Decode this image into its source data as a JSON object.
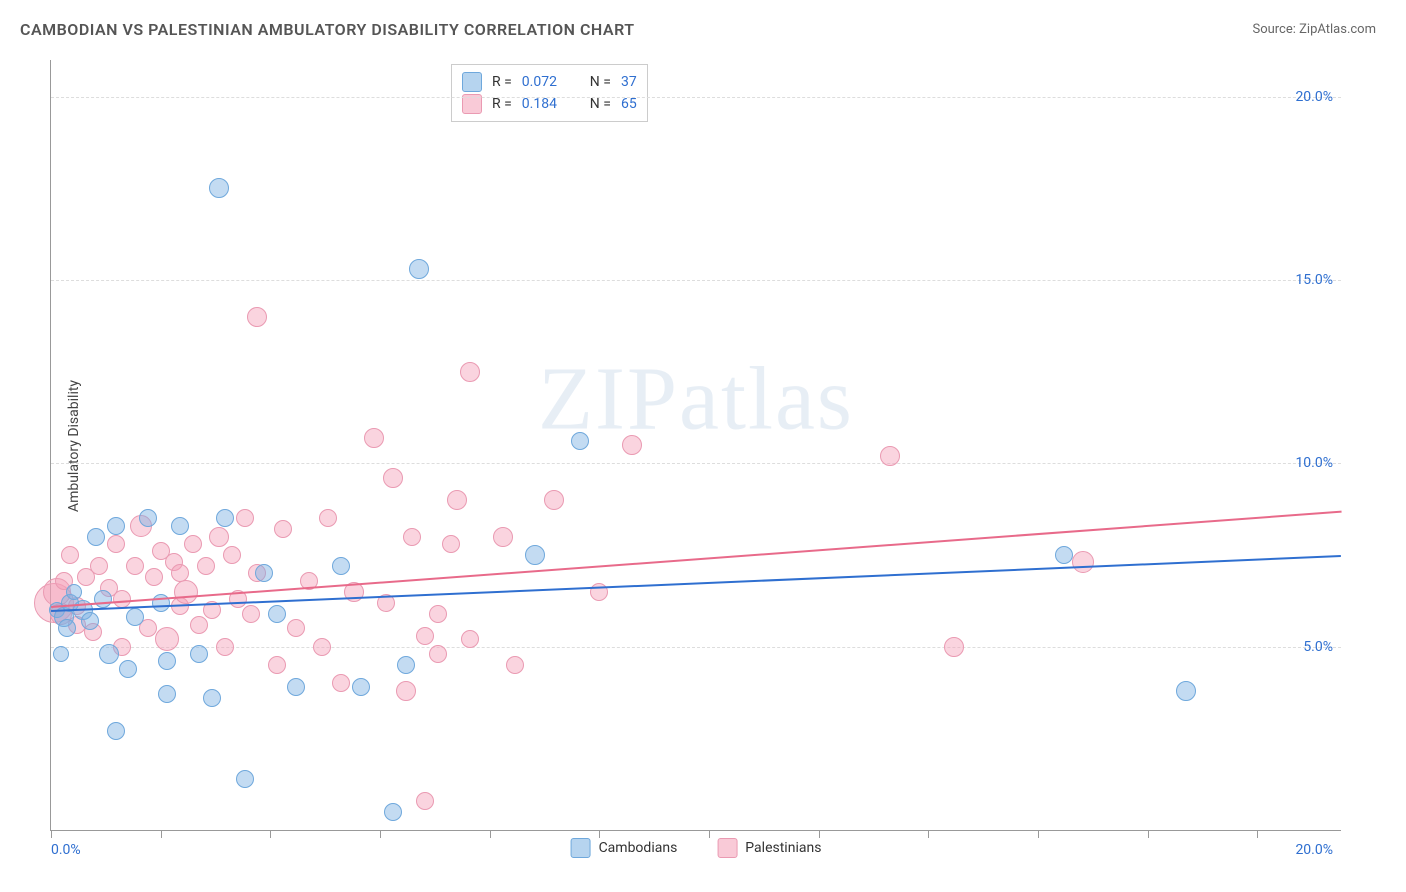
{
  "title": "CAMBODIAN VS PALESTINIAN AMBULATORY DISABILITY CORRELATION CHART",
  "source_label": "Source: ",
  "source_name": "ZipAtlas.com",
  "ylabel": "Ambulatory Disability",
  "watermark": {
    "part1": "ZIP",
    "part2": "atlas"
  },
  "chart": {
    "type": "scatter",
    "xlim": [
      0,
      20
    ],
    "ylim": [
      0,
      21
    ],
    "x_tick_positions": [
      0,
      1.7,
      3.4,
      5.1,
      6.8,
      8.5,
      10.2,
      11.9,
      13.6,
      15.3,
      17.0,
      18.7
    ],
    "y_ticks": [
      5.0,
      10.0,
      15.0,
      20.0
    ],
    "y_tick_labels": [
      "5.0%",
      "10.0%",
      "15.0%",
      "20.0%"
    ],
    "x_min_label": "0.0%",
    "x_max_label": "20.0%",
    "background_color": "#ffffff",
    "grid_color": "#dddddd",
    "axis_color": "#999999",
    "series": {
      "a": {
        "name": "Cambodians",
        "fill_color": "rgba(122,176,226,0.45)",
        "stroke_color": "#6fa8dc",
        "stat_R": "0.072",
        "stat_N": "37",
        "trend": {
          "y_at_x0": 6.0,
          "y_at_x20": 7.5,
          "color": "#2f6fd0"
        },
        "points": [
          {
            "x": 0.1,
            "y": 6.0,
            "r": 8
          },
          {
            "x": 0.2,
            "y": 5.8,
            "r": 10
          },
          {
            "x": 0.3,
            "y": 6.2,
            "r": 9
          },
          {
            "x": 0.15,
            "y": 4.8,
            "r": 8
          },
          {
            "x": 0.25,
            "y": 5.5,
            "r": 9
          },
          {
            "x": 0.35,
            "y": 6.5,
            "r": 8
          },
          {
            "x": 0.5,
            "y": 6.0,
            "r": 10
          },
          {
            "x": 0.6,
            "y": 5.7,
            "r": 9
          },
          {
            "x": 0.7,
            "y": 8.0,
            "r": 9
          },
          {
            "x": 0.8,
            "y": 6.3,
            "r": 9
          },
          {
            "x": 0.9,
            "y": 4.8,
            "r": 10
          },
          {
            "x": 1.0,
            "y": 8.3,
            "r": 9
          },
          {
            "x": 1.0,
            "y": 2.7,
            "r": 9
          },
          {
            "x": 1.2,
            "y": 4.4,
            "r": 9
          },
          {
            "x": 1.3,
            "y": 5.8,
            "r": 9
          },
          {
            "x": 1.5,
            "y": 8.5,
            "r": 9
          },
          {
            "x": 1.7,
            "y": 6.2,
            "r": 9
          },
          {
            "x": 1.8,
            "y": 3.7,
            "r": 9
          },
          {
            "x": 1.8,
            "y": 4.6,
            "r": 9
          },
          {
            "x": 2.0,
            "y": 8.3,
            "r": 9
          },
          {
            "x": 2.3,
            "y": 4.8,
            "r": 9
          },
          {
            "x": 2.6,
            "y": 17.5,
            "r": 10
          },
          {
            "x": 2.7,
            "y": 8.5,
            "r": 9
          },
          {
            "x": 2.5,
            "y": 3.6,
            "r": 9
          },
          {
            "x": 3.0,
            "y": 1.4,
            "r": 9
          },
          {
            "x": 3.3,
            "y": 7.0,
            "r": 9
          },
          {
            "x": 3.5,
            "y": 5.9,
            "r": 9
          },
          {
            "x": 3.8,
            "y": 3.9,
            "r": 9
          },
          {
            "x": 4.8,
            "y": 3.9,
            "r": 9
          },
          {
            "x": 4.5,
            "y": 7.2,
            "r": 9
          },
          {
            "x": 5.3,
            "y": 0.5,
            "r": 9
          },
          {
            "x": 5.7,
            "y": 15.3,
            "r": 10
          },
          {
            "x": 5.5,
            "y": 4.5,
            "r": 9
          },
          {
            "x": 7.5,
            "y": 7.5,
            "r": 10
          },
          {
            "x": 8.2,
            "y": 10.6,
            "r": 9
          },
          {
            "x": 15.7,
            "y": 7.5,
            "r": 9
          },
          {
            "x": 17.6,
            "y": 3.8,
            "r": 10
          }
        ]
      },
      "b": {
        "name": "Palestinians",
        "fill_color": "rgba(244,159,183,0.45)",
        "stroke_color": "#ea9ab2",
        "stat_R": "0.184",
        "stat_N": "65",
        "trend": {
          "y_at_x0": 6.1,
          "y_at_x20": 8.7,
          "color": "#e86a8a"
        },
        "points": [
          {
            "x": 0.05,
            "y": 6.2,
            "r": 20
          },
          {
            "x": 0.1,
            "y": 6.5,
            "r": 14
          },
          {
            "x": 0.15,
            "y": 5.9,
            "r": 11
          },
          {
            "x": 0.2,
            "y": 6.8,
            "r": 9
          },
          {
            "x": 0.3,
            "y": 7.5,
            "r": 9
          },
          {
            "x": 0.4,
            "y": 5.6,
            "r": 9
          },
          {
            "x": 0.55,
            "y": 6.9,
            "r": 9
          },
          {
            "x": 0.65,
            "y": 5.4,
            "r": 9
          },
          {
            "x": 0.75,
            "y": 7.2,
            "r": 9
          },
          {
            "x": 0.9,
            "y": 6.6,
            "r": 9
          },
          {
            "x": 1.0,
            "y": 7.8,
            "r": 9
          },
          {
            "x": 1.1,
            "y": 5.0,
            "r": 9
          },
          {
            "x": 1.1,
            "y": 6.3,
            "r": 9
          },
          {
            "x": 1.3,
            "y": 7.2,
            "r": 9
          },
          {
            "x": 1.4,
            "y": 8.3,
            "r": 11
          },
          {
            "x": 1.5,
            "y": 5.5,
            "r": 9
          },
          {
            "x": 1.6,
            "y": 6.9,
            "r": 9
          },
          {
            "x": 1.7,
            "y": 7.6,
            "r": 9
          },
          {
            "x": 1.8,
            "y": 5.2,
            "r": 12
          },
          {
            "x": 1.9,
            "y": 7.3,
            "r": 9
          },
          {
            "x": 2.0,
            "y": 6.1,
            "r": 9
          },
          {
            "x": 2.0,
            "y": 7.0,
            "r": 9
          },
          {
            "x": 2.1,
            "y": 6.5,
            "r": 12
          },
          {
            "x": 2.2,
            "y": 7.8,
            "r": 9
          },
          {
            "x": 2.3,
            "y": 5.6,
            "r": 9
          },
          {
            "x": 2.4,
            "y": 7.2,
            "r": 9
          },
          {
            "x": 2.5,
            "y": 6.0,
            "r": 9
          },
          {
            "x": 2.6,
            "y": 8.0,
            "r": 10
          },
          {
            "x": 2.7,
            "y": 5.0,
            "r": 9
          },
          {
            "x": 2.8,
            "y": 7.5,
            "r": 9
          },
          {
            "x": 2.9,
            "y": 6.3,
            "r": 9
          },
          {
            "x": 3.0,
            "y": 8.5,
            "r": 9
          },
          {
            "x": 3.1,
            "y": 5.9,
            "r": 9
          },
          {
            "x": 3.2,
            "y": 7.0,
            "r": 9
          },
          {
            "x": 3.2,
            "y": 14.0,
            "r": 10
          },
          {
            "x": 3.5,
            "y": 4.5,
            "r": 9
          },
          {
            "x": 3.6,
            "y": 8.2,
            "r": 9
          },
          {
            "x": 3.8,
            "y": 5.5,
            "r": 9
          },
          {
            "x": 4.0,
            "y": 6.8,
            "r": 9
          },
          {
            "x": 4.2,
            "y": 5.0,
            "r": 9
          },
          {
            "x": 4.3,
            "y": 8.5,
            "r": 9
          },
          {
            "x": 4.5,
            "y": 4.0,
            "r": 9
          },
          {
            "x": 4.7,
            "y": 6.5,
            "r": 10
          },
          {
            "x": 5.0,
            "y": 10.7,
            "r": 10
          },
          {
            "x": 5.2,
            "y": 6.2,
            "r": 9
          },
          {
            "x": 5.3,
            "y": 9.6,
            "r": 10
          },
          {
            "x": 5.5,
            "y": 3.8,
            "r": 10
          },
          {
            "x": 5.6,
            "y": 8.0,
            "r": 9
          },
          {
            "x": 5.8,
            "y": 5.3,
            "r": 9
          },
          {
            "x": 5.8,
            "y": 0.8,
            "r": 9
          },
          {
            "x": 6.0,
            "y": 4.8,
            "r": 9
          },
          {
            "x": 6.0,
            "y": 5.9,
            "r": 9
          },
          {
            "x": 6.2,
            "y": 7.8,
            "r": 9
          },
          {
            "x": 6.3,
            "y": 9.0,
            "r": 10
          },
          {
            "x": 6.5,
            "y": 5.2,
            "r": 9
          },
          {
            "x": 6.5,
            "y": 12.5,
            "r": 10
          },
          {
            "x": 7.0,
            "y": 8.0,
            "r": 10
          },
          {
            "x": 7.2,
            "y": 4.5,
            "r": 9
          },
          {
            "x": 7.8,
            "y": 9.0,
            "r": 10
          },
          {
            "x": 8.5,
            "y": 6.5,
            "r": 9
          },
          {
            "x": 9.0,
            "y": 10.5,
            "r": 10
          },
          {
            "x": 13.0,
            "y": 10.2,
            "r": 10
          },
          {
            "x": 14.0,
            "y": 5.0,
            "r": 10
          },
          {
            "x": 16.0,
            "y": 7.3,
            "r": 11
          },
          {
            "x": 0.4,
            "y": 6.1,
            "r": 9
          }
        ]
      }
    }
  },
  "stats_legend": {
    "R_label": "R =",
    "N_label": "N ="
  }
}
